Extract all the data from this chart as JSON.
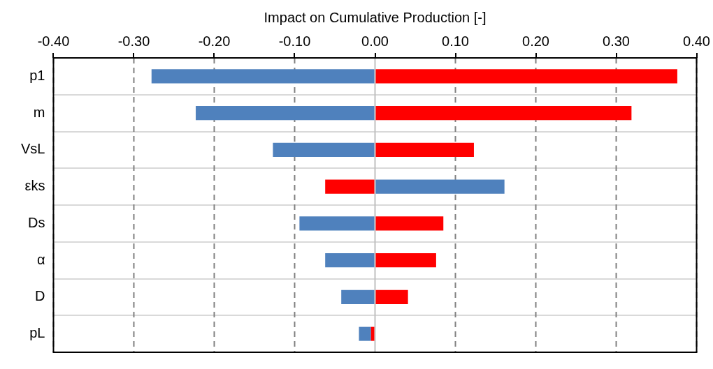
{
  "chart_data": {
    "type": "bar",
    "orientation": "horizontal",
    "xlabel": "Impact on Cumulative Production [-]",
    "categories": [
      "p1",
      "m",
      "VsL",
      "εks",
      "Ds",
      "α",
      "D",
      "pL"
    ],
    "series": [
      {
        "color": "#ff0000",
        "values": [
          0.376,
          0.319,
          0.123,
          -0.062,
          0.085,
          0.076,
          0.041,
          -0.005
        ]
      },
      {
        "color": "#4f81bd",
        "values": [
          -0.278,
          -0.223,
          -0.127,
          0.161,
          -0.094,
          -0.062,
          -0.042,
          -0.015
        ]
      }
    ],
    "xlim": [
      -0.4,
      0.4
    ],
    "xticks": [
      {
        "value": -0.4,
        "label": "-0.40"
      },
      {
        "value": -0.3,
        "label": "-0.30"
      },
      {
        "value": -0.2,
        "label": "-0.20"
      },
      {
        "value": -0.1,
        "label": "-0.10"
      },
      {
        "value": 0,
        "label": "0.00"
      },
      {
        "value": 0.1,
        "label": "0.10"
      },
      {
        "value": 0.2,
        "label": "0.20"
      },
      {
        "value": 0.3,
        "label": "0.30"
      },
      {
        "value": 0.4,
        "label": "0.40"
      }
    ],
    "stacked": true,
    "grid": true,
    "legend": false
  }
}
